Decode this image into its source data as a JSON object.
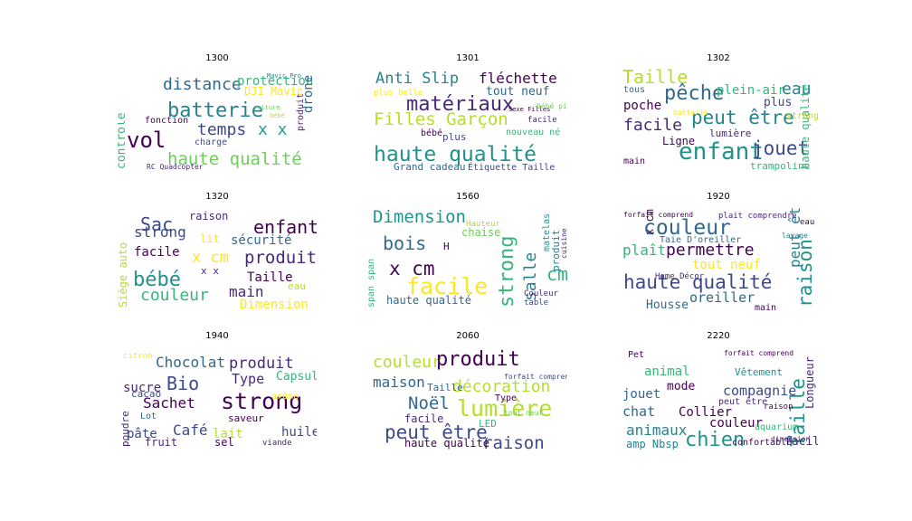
{
  "chart_data": [
    {
      "type": "wordcloud",
      "title": "1300",
      "words": [
        {
          "text": "batterie",
          "color": "#26828e"
        },
        {
          "text": "distance",
          "color": "#31688e"
        },
        {
          "text": "protection",
          "color": "#35b779"
        },
        {
          "text": "haute qualité",
          "color": "#6ece58"
        },
        {
          "text": "temps",
          "color": "#3e4989"
        },
        {
          "text": "x x",
          "color": "#1f9e89"
        },
        {
          "text": "vol",
          "color": "#440154"
        },
        {
          "text": "contrôle",
          "color": "#35b779"
        },
        {
          "text": "DJI Mavic",
          "color": "#fde725"
        },
        {
          "text": "drone",
          "color": "#31688e"
        },
        {
          "text": "produit",
          "color": "#482878"
        },
        {
          "text": "fonction",
          "color": "#440154"
        },
        {
          "text": "charge",
          "color": "#3e4989"
        },
        {
          "text": "RC Quadcopter",
          "color": "#482878"
        },
        {
          "text": "Mavic Pro",
          "color": "#26828e"
        },
        {
          "text": "voiture",
          "color": "#6ece58"
        },
        {
          "text": "bébé",
          "color": "#b5de2b"
        }
      ]
    },
    {
      "type": "wordcloud",
      "title": "1301",
      "words": [
        {
          "text": "Anti Slip",
          "color": "#26828e"
        },
        {
          "text": "fléchette",
          "color": "#440154"
        },
        {
          "text": "matériaux",
          "color": "#482878"
        },
        {
          "text": "tout neuf",
          "color": "#31688e"
        },
        {
          "text": "Filles Garçon",
          "color": "#b5de2b"
        },
        {
          "text": "haute qualité",
          "color": "#21918c"
        },
        {
          "text": "plus belle",
          "color": "#fde725"
        },
        {
          "text": "bébé",
          "color": "#440154"
        },
        {
          "text": "plus",
          "color": "#3e4989"
        },
        {
          "text": "nouveau né",
          "color": "#35b779"
        },
        {
          "text": "facile",
          "color": "#482878"
        },
        {
          "text": "Grand cadeau",
          "color": "#31688e"
        },
        {
          "text": "Étiquette Taille",
          "color": "#3e4989"
        },
        {
          "text": "Sexe Filles",
          "color": "#440154"
        },
        {
          "text": "bébé pied",
          "color": "#6ece58"
        }
      ]
    },
    {
      "type": "wordcloud",
      "title": "1302",
      "words": [
        {
          "text": "Taille",
          "color": "#b5de2b"
        },
        {
          "text": "pêche",
          "color": "#31688e"
        },
        {
          "text": "plein-air",
          "color": "#35b779"
        },
        {
          "text": "eau",
          "color": "#26828e"
        },
        {
          "text": "poche",
          "color": "#440154"
        },
        {
          "text": "facile",
          "color": "#482878"
        },
        {
          "text": "peut être",
          "color": "#26828e"
        },
        {
          "text": "enfant",
          "color": "#21918c"
        },
        {
          "text": "jouet",
          "color": "#3e4989"
        },
        {
          "text": "haute qualité",
          "color": "#35b779"
        },
        {
          "text": "Ligne",
          "color": "#440154"
        },
        {
          "text": "lumière",
          "color": "#482878"
        },
        {
          "text": "main",
          "color": "#440154"
        },
        {
          "text": "trampoline",
          "color": "#35b779"
        },
        {
          "text": "strong",
          "color": "#b5de2b"
        },
        {
          "text": "plus",
          "color": "#3e4989"
        },
        {
          "text": "tous",
          "color": "#31688e"
        },
        {
          "text": "batterie",
          "color": "#fde725"
        }
      ]
    },
    {
      "type": "wordcloud",
      "title": "1320",
      "words": [
        {
          "text": "Sac",
          "color": "#3e4989"
        },
        {
          "text": "raison",
          "color": "#482878"
        },
        {
          "text": "enfant",
          "color": "#440154"
        },
        {
          "text": "strong",
          "color": "#3e4989"
        },
        {
          "text": "lit",
          "color": "#fde725"
        },
        {
          "text": "sécurité",
          "color": "#31688e"
        },
        {
          "text": "facile",
          "color": "#440154"
        },
        {
          "text": "x cm",
          "color": "#fde725"
        },
        {
          "text": "produit",
          "color": "#482878"
        },
        {
          "text": "bébé",
          "color": "#21918c"
        },
        {
          "text": "Taille",
          "color": "#440154"
        },
        {
          "text": "couleur",
          "color": "#35b779"
        },
        {
          "text": "main",
          "color": "#482878"
        },
        {
          "text": "Dimension",
          "color": "#fde725"
        },
        {
          "text": "Siège auto",
          "color": "#b5de2b"
        },
        {
          "text": "eau",
          "color": "#b5de2b"
        },
        {
          "text": "x x",
          "color": "#482878"
        }
      ]
    },
    {
      "type": "wordcloud",
      "title": "1560",
      "words": [
        {
          "text": "Dimension",
          "color": "#21918c"
        },
        {
          "text": "bois",
          "color": "#31688e"
        },
        {
          "text": "x cm",
          "color": "#440154"
        },
        {
          "text": "facile",
          "color": "#fde725"
        },
        {
          "text": "strong",
          "color": "#35b779"
        },
        {
          "text": "salle",
          "color": "#26828e"
        },
        {
          "text": "cm",
          "color": "#35b779"
        },
        {
          "text": "haute qualité",
          "color": "#31688e"
        },
        {
          "text": "chaise",
          "color": "#6ece58"
        },
        {
          "text": "produit",
          "color": "#26828e"
        },
        {
          "text": "matelas",
          "color": "#21918c"
        },
        {
          "text": "span span",
          "color": "#35b779"
        },
        {
          "text": "Couleur",
          "color": "#482878"
        },
        {
          "text": "table",
          "color": "#3e4989"
        },
        {
          "text": "Hauteur",
          "color": "#b5de2b"
        },
        {
          "text": "cuisine",
          "color": "#482878"
        },
        {
          "text": "H",
          "color": "#440154"
        }
      ]
    },
    {
      "type": "wordcloud",
      "title": "1920",
      "words": [
        {
          "text": "couleur",
          "color": "#31688e"
        },
        {
          "text": "raison",
          "color": "#21918c"
        },
        {
          "text": "peut être",
          "color": "#26828e"
        },
        {
          "text": "plaît",
          "color": "#35b779"
        },
        {
          "text": "permettre",
          "color": "#440154"
        },
        {
          "text": "tout neuf",
          "color": "#fde725"
        },
        {
          "text": "haute qualité",
          "color": "#3e4989"
        },
        {
          "text": "oreiller",
          "color": "#31688e"
        },
        {
          "text": "Housse",
          "color": "#31688e"
        },
        {
          "text": "main",
          "color": "#440154"
        },
        {
          "text": "x cm",
          "color": "#440154"
        },
        {
          "text": "plait comprendre",
          "color": "#482878"
        },
        {
          "text": "forfait comprend",
          "color": "#440154"
        },
        {
          "text": "Taie D'oreiller",
          "color": "#31688e"
        },
        {
          "text": "Home Décor",
          "color": "#482878"
        },
        {
          "text": "eau",
          "color": "#440154"
        },
        {
          "text": "lavage",
          "color": "#26828e"
        }
      ]
    },
    {
      "type": "wordcloud",
      "title": "1940",
      "words": [
        {
          "text": "Chocolat",
          "color": "#31688e"
        },
        {
          "text": "produit",
          "color": "#482878"
        },
        {
          "text": "Bio",
          "color": "#3e4989"
        },
        {
          "text": "strong",
          "color": "#440154"
        },
        {
          "text": "Sachet",
          "color": "#440154"
        },
        {
          "text": "Type",
          "color": "#482878"
        },
        {
          "text": "Capsule",
          "color": "#35b779"
        },
        {
          "text": "sucre",
          "color": "#482878"
        },
        {
          "text": "Café",
          "color": "#3e4989"
        },
        {
          "text": "lait",
          "color": "#b5de2b"
        },
        {
          "text": "huile",
          "color": "#3e4989"
        },
        {
          "text": "pâte",
          "color": "#3e4989"
        },
        {
          "text": "fruit",
          "color": "#482878"
        },
        {
          "text": "sel",
          "color": "#440154"
        },
        {
          "text": "poudre",
          "color": "#482878"
        },
        {
          "text": "cacao",
          "color": "#3e4989"
        },
        {
          "text": "citron",
          "color": "#fde725"
        },
        {
          "text": "arôme",
          "color": "#fde725"
        },
        {
          "text": "saveur",
          "color": "#440154"
        },
        {
          "text": "Lot",
          "color": "#31688e"
        },
        {
          "text": "viande",
          "color": "#482878"
        }
      ]
    },
    {
      "type": "wordcloud",
      "title": "2060",
      "words": [
        {
          "text": "couleur",
          "color": "#b5de2b"
        },
        {
          "text": "produit",
          "color": "#440154"
        },
        {
          "text": "maison",
          "color": "#31688e"
        },
        {
          "text": "décoration",
          "color": "#b5de2b"
        },
        {
          "text": "Noël",
          "color": "#31688e"
        },
        {
          "text": "lumière",
          "color": "#b5de2b"
        },
        {
          "text": "peut être",
          "color": "#3e4989"
        },
        {
          "text": "raison",
          "color": "#3e4989"
        },
        {
          "text": "facile",
          "color": "#482878"
        },
        {
          "text": "Type",
          "color": "#440154"
        },
        {
          "text": "Taille",
          "color": "#31688e"
        },
        {
          "text": "haute qualité",
          "color": "#440154"
        },
        {
          "text": "LED",
          "color": "#35b779"
        },
        {
          "text": "forfait comprend",
          "color": "#3e4989"
        },
        {
          "text": "tout neuf",
          "color": "#6ece58"
        }
      ]
    },
    {
      "type": "wordcloud",
      "title": "2220",
      "words": [
        {
          "text": "animal",
          "color": "#35b779"
        },
        {
          "text": "Pet",
          "color": "#440154"
        },
        {
          "text": "Vêtement",
          "color": "#21918c"
        },
        {
          "text": "jouet",
          "color": "#31688e"
        },
        {
          "text": "mode",
          "color": "#440154"
        },
        {
          "text": "compagnie",
          "color": "#3e4989"
        },
        {
          "text": "Taille",
          "color": "#21918c"
        },
        {
          "text": "chat",
          "color": "#31688e"
        },
        {
          "text": "Collier",
          "color": "#440154"
        },
        {
          "text": "Longueur",
          "color": "#482878"
        },
        {
          "text": "couleur",
          "color": "#440154"
        },
        {
          "text": "animaux",
          "color": "#26828e"
        },
        {
          "text": "chien",
          "color": "#21918c"
        },
        {
          "text": "facile",
          "color": "#482878"
        },
        {
          "text": "amp Nbsp",
          "color": "#26828e"
        },
        {
          "text": "confortable",
          "color": "#440154"
        },
        {
          "text": "peut être",
          "color": "#482878"
        },
        {
          "text": "raison",
          "color": "#440154"
        },
        {
          "text": "aquarium",
          "color": "#35b779"
        },
        {
          "text": "forfait comprend",
          "color": "#440154"
        },
        {
          "text": "dimension",
          "color": "#482878"
        }
      ]
    }
  ]
}
